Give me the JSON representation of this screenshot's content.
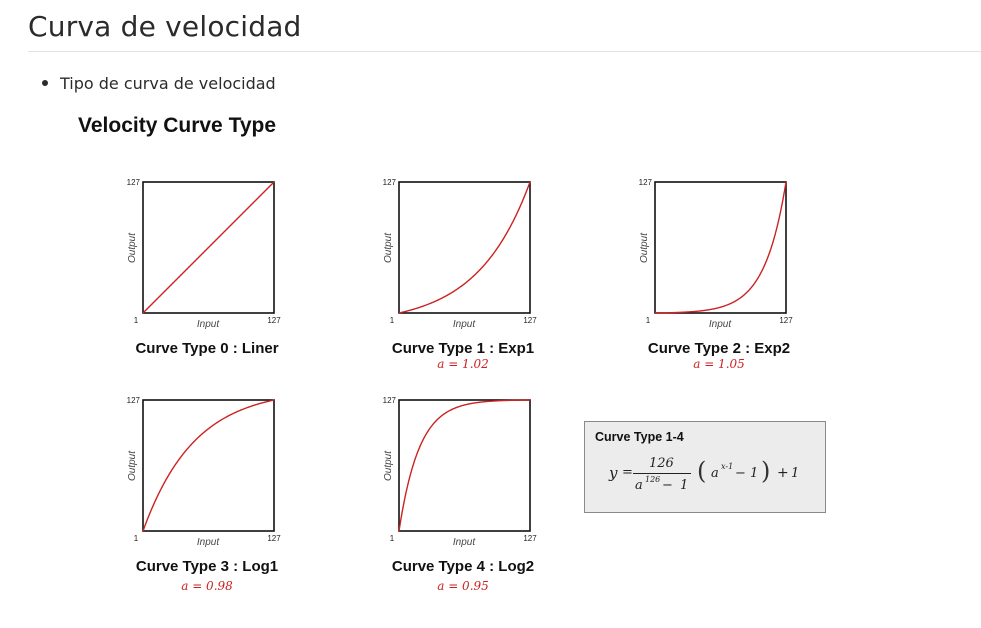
{
  "page": {
    "title": "Curva de velocidad",
    "bullet": "Tipo de curva de velocidad"
  },
  "figure": {
    "title": "Velocity Curve Type",
    "curve_color": "#cc2222",
    "formula": {
      "title": "Curve Type 1-4",
      "lhs": "y",
      "equals": "=",
      "numerator": "126",
      "den_base": "a",
      "den_exp": "126",
      "den_minus": "−",
      "den_one": "1",
      "open_paren": "(",
      "term_base": "a",
      "term_exp": "x-1",
      "term_minus": "−",
      "term_one": "1",
      "close_paren": ")",
      "plus": "+",
      "plus_one": "1"
    }
  },
  "chart_data": [
    {
      "type": "line",
      "name": "Curve Type 0 : Liner",
      "param": "",
      "kind": "linear",
      "a": 1.0,
      "xlabel": "Input",
      "ylabel": "Output",
      "xlim": [
        1,
        127
      ],
      "ylim": [
        1,
        127
      ],
      "x_tick_labels": [
        "1",
        "127"
      ],
      "y_tick_labels": [
        "127"
      ]
    },
    {
      "type": "line",
      "name": "Curve Type 1 : Exp1",
      "param": "a = 1.02",
      "kind": "exp",
      "a": 1.02,
      "xlabel": "Input",
      "ylabel": "Output",
      "xlim": [
        1,
        127
      ],
      "ylim": [
        1,
        127
      ],
      "x_tick_labels": [
        "1",
        "127"
      ],
      "y_tick_labels": [
        "127"
      ]
    },
    {
      "type": "line",
      "name": "Curve Type 2 : Exp2",
      "param": "a = 1.05",
      "kind": "exp",
      "a": 1.05,
      "xlabel": "Input",
      "ylabel": "Output",
      "xlim": [
        1,
        127
      ],
      "ylim": [
        1,
        127
      ],
      "x_tick_labels": [
        "1",
        "127"
      ],
      "y_tick_labels": [
        "127"
      ]
    },
    {
      "type": "line",
      "name": "Curve Type 3 : Log1",
      "param": "a = 0.98",
      "kind": "exp",
      "a": 0.98,
      "xlabel": "Input",
      "ylabel": "Output",
      "xlim": [
        1,
        127
      ],
      "ylim": [
        1,
        127
      ],
      "x_tick_labels": [
        "1",
        "127"
      ],
      "y_tick_labels": [
        "127"
      ]
    },
    {
      "type": "line",
      "name": "Curve Type 4 : Log2",
      "param": "a = 0.95",
      "kind": "exp",
      "a": 0.95,
      "xlabel": "Input",
      "ylabel": "Output",
      "xlim": [
        1,
        127
      ],
      "ylim": [
        1,
        127
      ],
      "x_tick_labels": [
        "1",
        "127"
      ],
      "y_tick_labels": [
        "127"
      ]
    }
  ]
}
